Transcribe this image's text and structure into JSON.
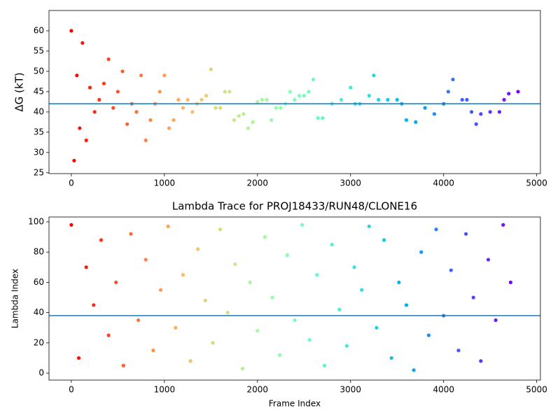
{
  "chart_data": [
    {
      "type": "scatter",
      "y_label": "ΔG (kT)",
      "colormap": "rainbow_r",
      "hline": {
        "value": 42,
        "color": "#1f77b4"
      },
      "xlim": [
        -240,
        5040
      ],
      "ylim": [
        24.8,
        65
      ],
      "xticks": [
        0,
        1000,
        2000,
        3000,
        4000,
        5000
      ],
      "yticks": [
        25,
        30,
        35,
        40,
        45,
        50,
        55,
        60
      ],
      "x": [
        0,
        30,
        60,
        90,
        120,
        160,
        200,
        250,
        300,
        350,
        400,
        450,
        500,
        550,
        600,
        650,
        700,
        750,
        800,
        850,
        900,
        950,
        1000,
        1050,
        1100,
        1150,
        1200,
        1250,
        1300,
        1350,
        1400,
        1450,
        1500,
        1550,
        1600,
        1650,
        1700,
        1750,
        1800,
        1850,
        1900,
        1950,
        2000,
        2050,
        2100,
        2150,
        2200,
        2250,
        2300,
        2350,
        2400,
        2450,
        2500,
        2550,
        2600,
        2650,
        2700,
        2800,
        2900,
        3000,
        3050,
        3100,
        3200,
        3250,
        3300,
        3400,
        3500,
        3550,
        3600,
        3700,
        3800,
        3900,
        4000,
        4050,
        4100,
        4200,
        4250,
        4300,
        4350,
        4400,
        4500,
        4600,
        4650,
        4700,
        4800
      ],
      "values": [
        60,
        28,
        49,
        36,
        57,
        33,
        46,
        40,
        43,
        47,
        53,
        41,
        45,
        50,
        37,
        42,
        40,
        49,
        33,
        38,
        42,
        45,
        49,
        36,
        38,
        43,
        41,
        43,
        40,
        42,
        43,
        44,
        50.5,
        41,
        41,
        45,
        45,
        38,
        39,
        39.5,
        36,
        37.5,
        42.5,
        43,
        43,
        38,
        41,
        41,
        42,
        45,
        43,
        44,
        44,
        45,
        48,
        38.5,
        38.5,
        42,
        43,
        46,
        42,
        42,
        44,
        49,
        43,
        43,
        43,
        42,
        38,
        37.5,
        41,
        39.5,
        42,
        45,
        48,
        43,
        43,
        40,
        37,
        39.5,
        40,
        40,
        43,
        44.5,
        45
      ]
    },
    {
      "type": "scatter",
      "title": "Lambda Trace for PROJ18433/RUN48/CLONE16",
      "x_label": "Frame Index",
      "y_label": "Lambda Index",
      "colormap": "rainbow_r",
      "hline": {
        "value": 38,
        "color": "#1f77b4"
      },
      "xlim": [
        -240,
        5040
      ],
      "ylim": [
        -4.6,
        103.2
      ],
      "xticks": [
        0,
        1000,
        2000,
        3000,
        4000,
        5000
      ],
      "yticks": [
        0,
        20,
        40,
        60,
        80,
        100
      ],
      "x": [
        0,
        80,
        160,
        240,
        320,
        400,
        480,
        560,
        640,
        720,
        800,
        880,
        960,
        1040,
        1120,
        1200,
        1280,
        1360,
        1440,
        1520,
        1600,
        1680,
        1760,
        1840,
        1920,
        2000,
        2080,
        2160,
        2240,
        2320,
        2400,
        2480,
        2560,
        2640,
        2720,
        2800,
        2880,
        2960,
        3040,
        3120,
        3200,
        3280,
        3360,
        3440,
        3520,
        3600,
        3680,
        3760,
        3840,
        3920,
        4000,
        4080,
        4160,
        4240,
        4320,
        4400,
        4480,
        4560,
        4640,
        4720
      ],
      "values": [
        98,
        10,
        70,
        45,
        88,
        25,
        60,
        5,
        92,
        35,
        75,
        15,
        55,
        97,
        30,
        65,
        8,
        82,
        48,
        20,
        95,
        40,
        72,
        3,
        60,
        28,
        90,
        50,
        12,
        78,
        35,
        98,
        22,
        65,
        5,
        85,
        42,
        18,
        70,
        55,
        97,
        30,
        88,
        10,
        60,
        45,
        2,
        80,
        25,
        95,
        38,
        68,
        15,
        92,
        50,
        8,
        75,
        35,
        98,
        60
      ]
    }
  ]
}
